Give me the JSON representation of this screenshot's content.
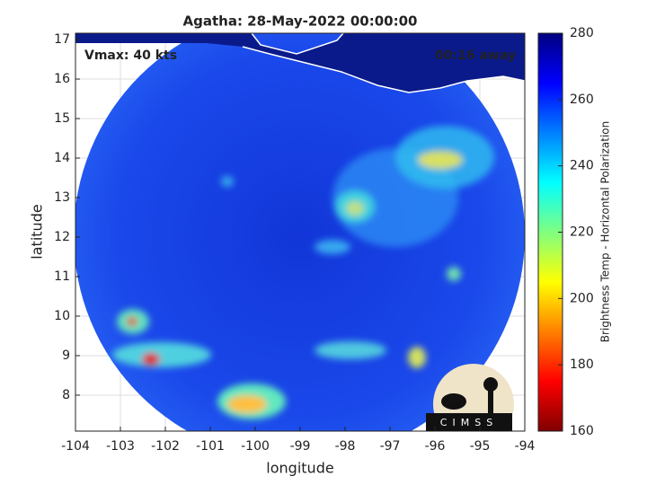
{
  "chart_data": {
    "type": "image-map",
    "title": "Agatha: 28-May-2022 00:00:00",
    "annotations": [
      "Vmax: 40 kts",
      "00:16 away"
    ],
    "xlabel": "longitude",
    "ylabel": "latitude",
    "xlim": [
      -104,
      -94
    ],
    "xticks": [
      -104,
      -103,
      -102,
      -101,
      -100,
      -99,
      -98,
      -97,
      -96,
      -95,
      -94
    ],
    "ylim": [
      7.09,
      17.16
    ],
    "yticks": [
      8,
      9,
      10,
      11,
      12,
      13,
      14,
      15,
      16,
      17
    ],
    "grid": true,
    "colorbar": {
      "label": "Brightness Temp - Horizontal Polarization",
      "lim": [
        160,
        280
      ],
      "ticks": [
        160,
        180,
        200,
        220,
        240,
        260,
        280
      ]
    },
    "logo_text": "CIMSS"
  }
}
